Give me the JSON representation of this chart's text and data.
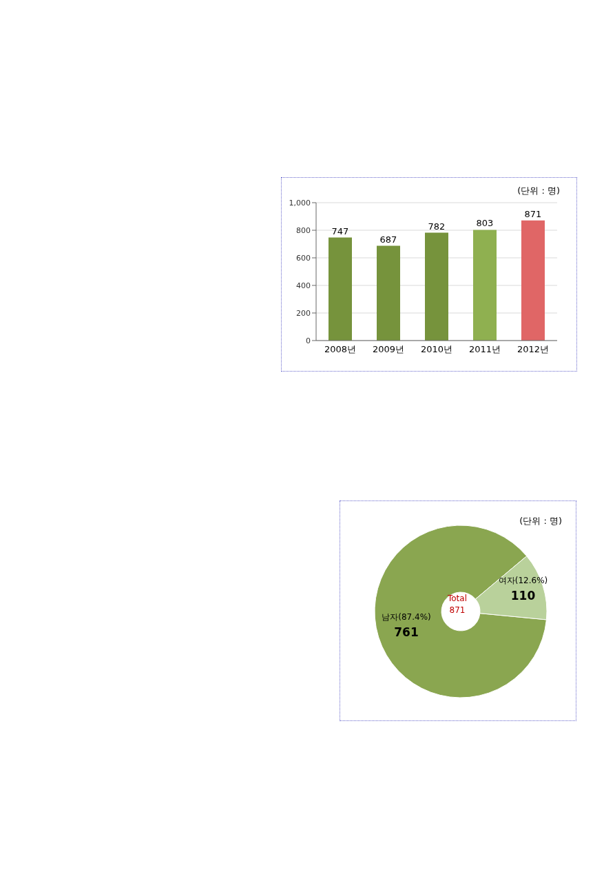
{
  "chart_data": [
    {
      "type": "bar",
      "categories": [
        "2008년",
        "2009년",
        "2010년",
        "2011년",
        "2012년"
      ],
      "values": [
        747,
        687,
        782,
        803,
        871
      ],
      "colors": [
        "#76933c",
        "#76933c",
        "#76933c",
        "#8fb050",
        "#e06666"
      ],
      "ylim": [
        0,
        1000
      ],
      "yticks": [
        0,
        200,
        400,
        600,
        800,
        {
          "value": 1000,
          "label": "1,000"
        }
      ],
      "grid": "y",
      "data_labels": true,
      "annotations": [
        "(단위 : 명)"
      ]
    },
    {
      "type": "donut",
      "categories": [
        "남자(87.4%)",
        "여자(12.6%)"
      ],
      "values": [
        761,
        110
      ],
      "colors": [
        "#8aa650",
        "#b9d19b"
      ],
      "data_labels": true,
      "annotations": [
        "(단위 : 명)",
        "Total 871"
      ]
    }
  ]
}
